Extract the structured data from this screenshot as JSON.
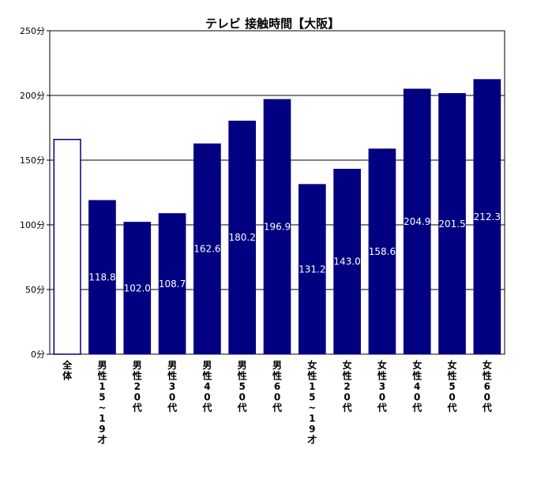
{
  "chart_data": {
    "type": "bar",
    "title": "テレビ 接触時間【大阪】",
    "xlabel": "",
    "ylabel": "",
    "y_unit": "分",
    "ylim": [
      0,
      250
    ],
    "yticks": [
      "0分",
      "50分",
      "100分",
      "150分",
      "200分",
      "250分"
    ],
    "grid": true,
    "legend": "none",
    "categories": [
      "全体",
      "男性15~19才",
      "男性20代",
      "男性30代",
      "男性40代",
      "男性50代",
      "男性60代",
      "女性15~19才",
      "女性20代",
      "女性30代",
      "女性40代",
      "女性50代",
      "女性60代"
    ],
    "values": [
      166.0,
      118.8,
      102.0,
      108.7,
      162.6,
      180.2,
      196.9,
      131.2,
      143.0,
      158.6,
      204.9,
      201.5,
      212.3
    ],
    "data_labels": [
      "",
      "118.8",
      "102.0",
      "108.7",
      "162.6",
      "180.2",
      "196.9",
      "131.2",
      "143.0",
      "158.6",
      "204.9",
      "201.5",
      "212.3"
    ],
    "colors": {
      "bar": "#000080",
      "first_bar_fill": "#ffffff",
      "first_bar_stroke": "#000080",
      "label": "#ffffff"
    }
  }
}
